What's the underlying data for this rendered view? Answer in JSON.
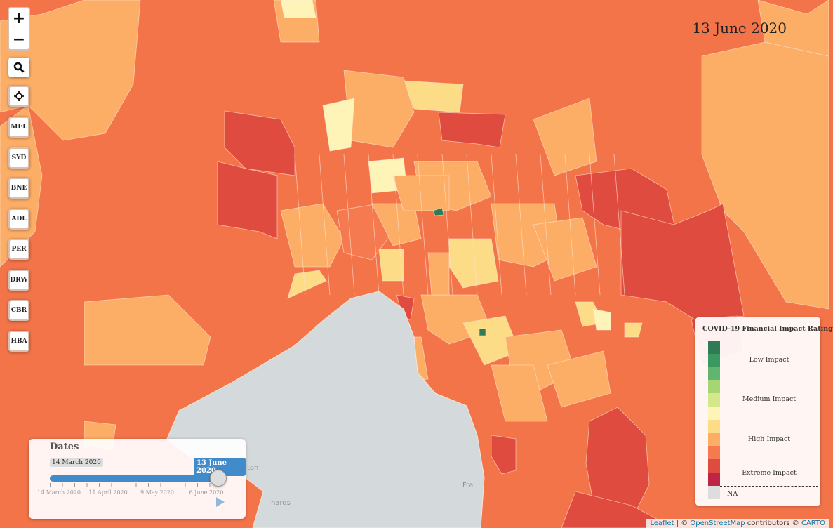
{
  "date_title": "13 June 2020",
  "controls": {
    "zoom_in": "+",
    "zoom_out": "−",
    "search_icon": "search-icon",
    "locate_icon": "crosshair-icon",
    "cities": [
      "MEL",
      "SYD",
      "BNE",
      "ADL",
      "PER",
      "DRW",
      "CBR",
      "HBA"
    ]
  },
  "slider": {
    "title": "Dates",
    "min_label": "14 March 2020",
    "current_label": "13 June 2020",
    "progress": 1.0,
    "tick_labels": [
      "14 March 2020",
      "11 April 2020",
      "9 May 2020",
      "6 June 2020"
    ],
    "play_icon": "play-icon"
  },
  "legend": {
    "title": "COVID-19 Financial Impact Rating",
    "colors": [
      "#2e7b55",
      "#3a9960",
      "#62b56e",
      "#a6d673",
      "#d4e88a",
      "#fff4b8",
      "#fddc88",
      "#fdae66",
      "#f57a50",
      "#e04b3f",
      "#be2446"
    ],
    "na_color": "#dddddd",
    "labels": [
      "Low Impact",
      "Medium Impact",
      "High Impact",
      "Extreme Impact"
    ],
    "na_label": "NA"
  },
  "map_labels": [
    "ton",
    "nards",
    "Fra"
  ],
  "attribution": {
    "leaflet": "Leaflet",
    "sep": " | © ",
    "osm": "OpenStreetMap",
    "contrib": " contributors © ",
    "carto": "CARTO"
  }
}
